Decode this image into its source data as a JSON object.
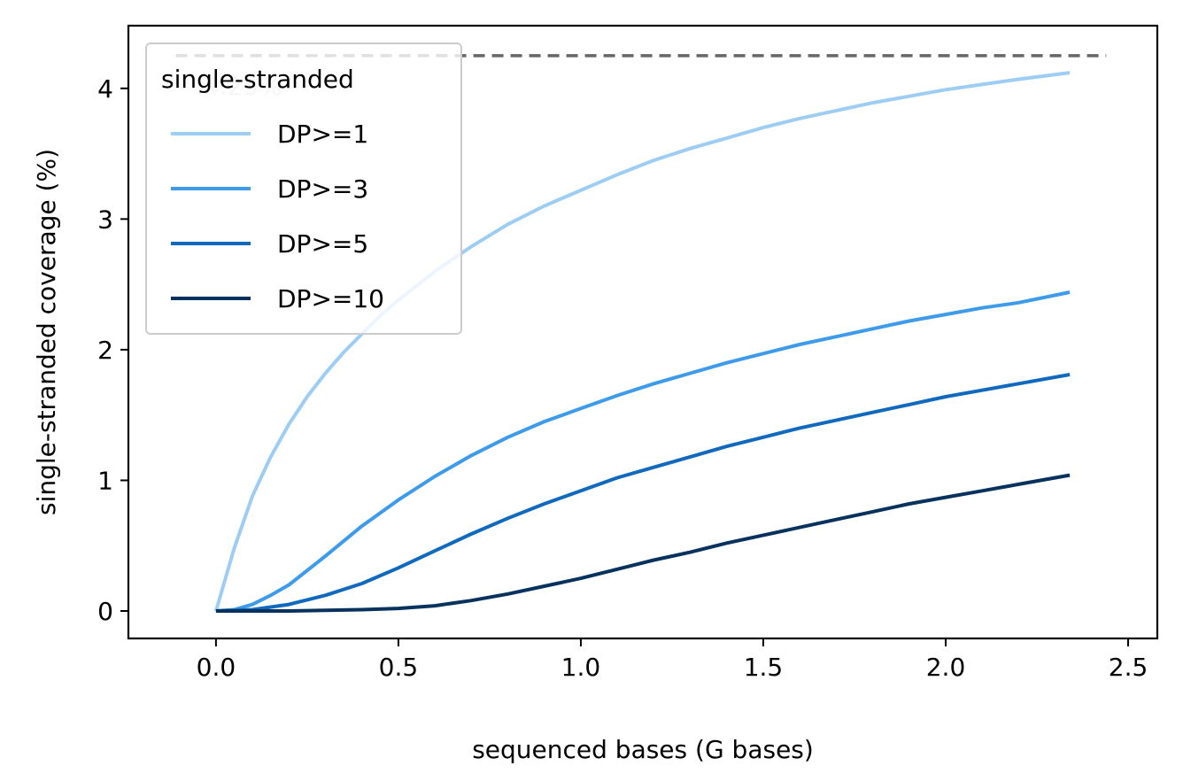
{
  "chart_data": {
    "type": "line",
    "xlabel": "sequenced bases (G bases)",
    "ylabel": "single-stranded coverage (%)",
    "xlim": [
      -0.24,
      2.58
    ],
    "ylim": [
      -0.21,
      4.48
    ],
    "xticks": [
      "0.0",
      "0.5",
      "1.0",
      "1.5",
      "2.0",
      "2.5"
    ],
    "yticks": [
      "0",
      "1",
      "2",
      "3",
      "4"
    ],
    "grid": false,
    "legend": {
      "title": "single-stranded",
      "placement": "upper-left"
    },
    "reference_line": {
      "y": 4.25,
      "label": "4.25%",
      "color": "#666666",
      "x_range": [
        -0.11,
        2.44
      ]
    },
    "series": [
      {
        "name": "DP>=1",
        "color": "#9ecdf3",
        "x": [
          0,
          0.05,
          0.1,
          0.15,
          0.2,
          0.25,
          0.3,
          0.35,
          0.4,
          0.45,
          0.5,
          0.6,
          0.7,
          0.8,
          0.9,
          1.0,
          1.1,
          1.2,
          1.3,
          1.4,
          1.5,
          1.6,
          1.7,
          1.8,
          1.9,
          2.0,
          2.1,
          2.2,
          2.34
        ],
        "y": [
          0,
          0.48,
          0.88,
          1.18,
          1.43,
          1.64,
          1.82,
          1.98,
          2.12,
          2.26,
          2.38,
          2.6,
          2.79,
          2.96,
          3.1,
          3.22,
          3.34,
          3.45,
          3.54,
          3.62,
          3.7,
          3.77,
          3.83,
          3.89,
          3.94,
          3.99,
          4.03,
          4.07,
          4.12
        ]
      },
      {
        "name": "DP>=3",
        "color": "#3d9be9",
        "x": [
          0,
          0.05,
          0.1,
          0.15,
          0.2,
          0.3,
          0.4,
          0.5,
          0.6,
          0.7,
          0.8,
          0.9,
          1.0,
          1.1,
          1.2,
          1.3,
          1.4,
          1.5,
          1.6,
          1.7,
          1.8,
          1.9,
          2.0,
          2.1,
          2.2,
          2.34
        ],
        "y": [
          0,
          0.01,
          0.05,
          0.12,
          0.2,
          0.42,
          0.65,
          0.85,
          1.03,
          1.19,
          1.33,
          1.45,
          1.55,
          1.65,
          1.74,
          1.82,
          1.9,
          1.97,
          2.04,
          2.1,
          2.16,
          2.22,
          2.27,
          2.32,
          2.36,
          2.44
        ]
      },
      {
        "name": "DP>=5",
        "color": "#1069bd",
        "x": [
          0,
          0.1,
          0.2,
          0.3,
          0.4,
          0.5,
          0.6,
          0.7,
          0.8,
          0.9,
          1.0,
          1.1,
          1.2,
          1.3,
          1.4,
          1.5,
          1.6,
          1.7,
          1.8,
          1.9,
          2.0,
          2.1,
          2.2,
          2.34
        ],
        "y": [
          0,
          0.01,
          0.05,
          0.12,
          0.21,
          0.33,
          0.46,
          0.59,
          0.71,
          0.82,
          0.92,
          1.02,
          1.1,
          1.18,
          1.26,
          1.33,
          1.4,
          1.46,
          1.52,
          1.58,
          1.64,
          1.69,
          1.74,
          1.81
        ]
      },
      {
        "name": "DP>=10",
        "color": "#08325e",
        "x": [
          0,
          0.1,
          0.2,
          0.3,
          0.4,
          0.5,
          0.6,
          0.7,
          0.8,
          0.9,
          1.0,
          1.1,
          1.2,
          1.3,
          1.4,
          1.5,
          1.6,
          1.7,
          1.8,
          1.9,
          2.0,
          2.1,
          2.2,
          2.34
        ],
        "y": [
          0,
          0,
          0,
          0.005,
          0.01,
          0.02,
          0.04,
          0.08,
          0.13,
          0.19,
          0.25,
          0.32,
          0.39,
          0.45,
          0.52,
          0.58,
          0.64,
          0.7,
          0.76,
          0.82,
          0.87,
          0.92,
          0.97,
          1.04
        ]
      }
    ]
  }
}
